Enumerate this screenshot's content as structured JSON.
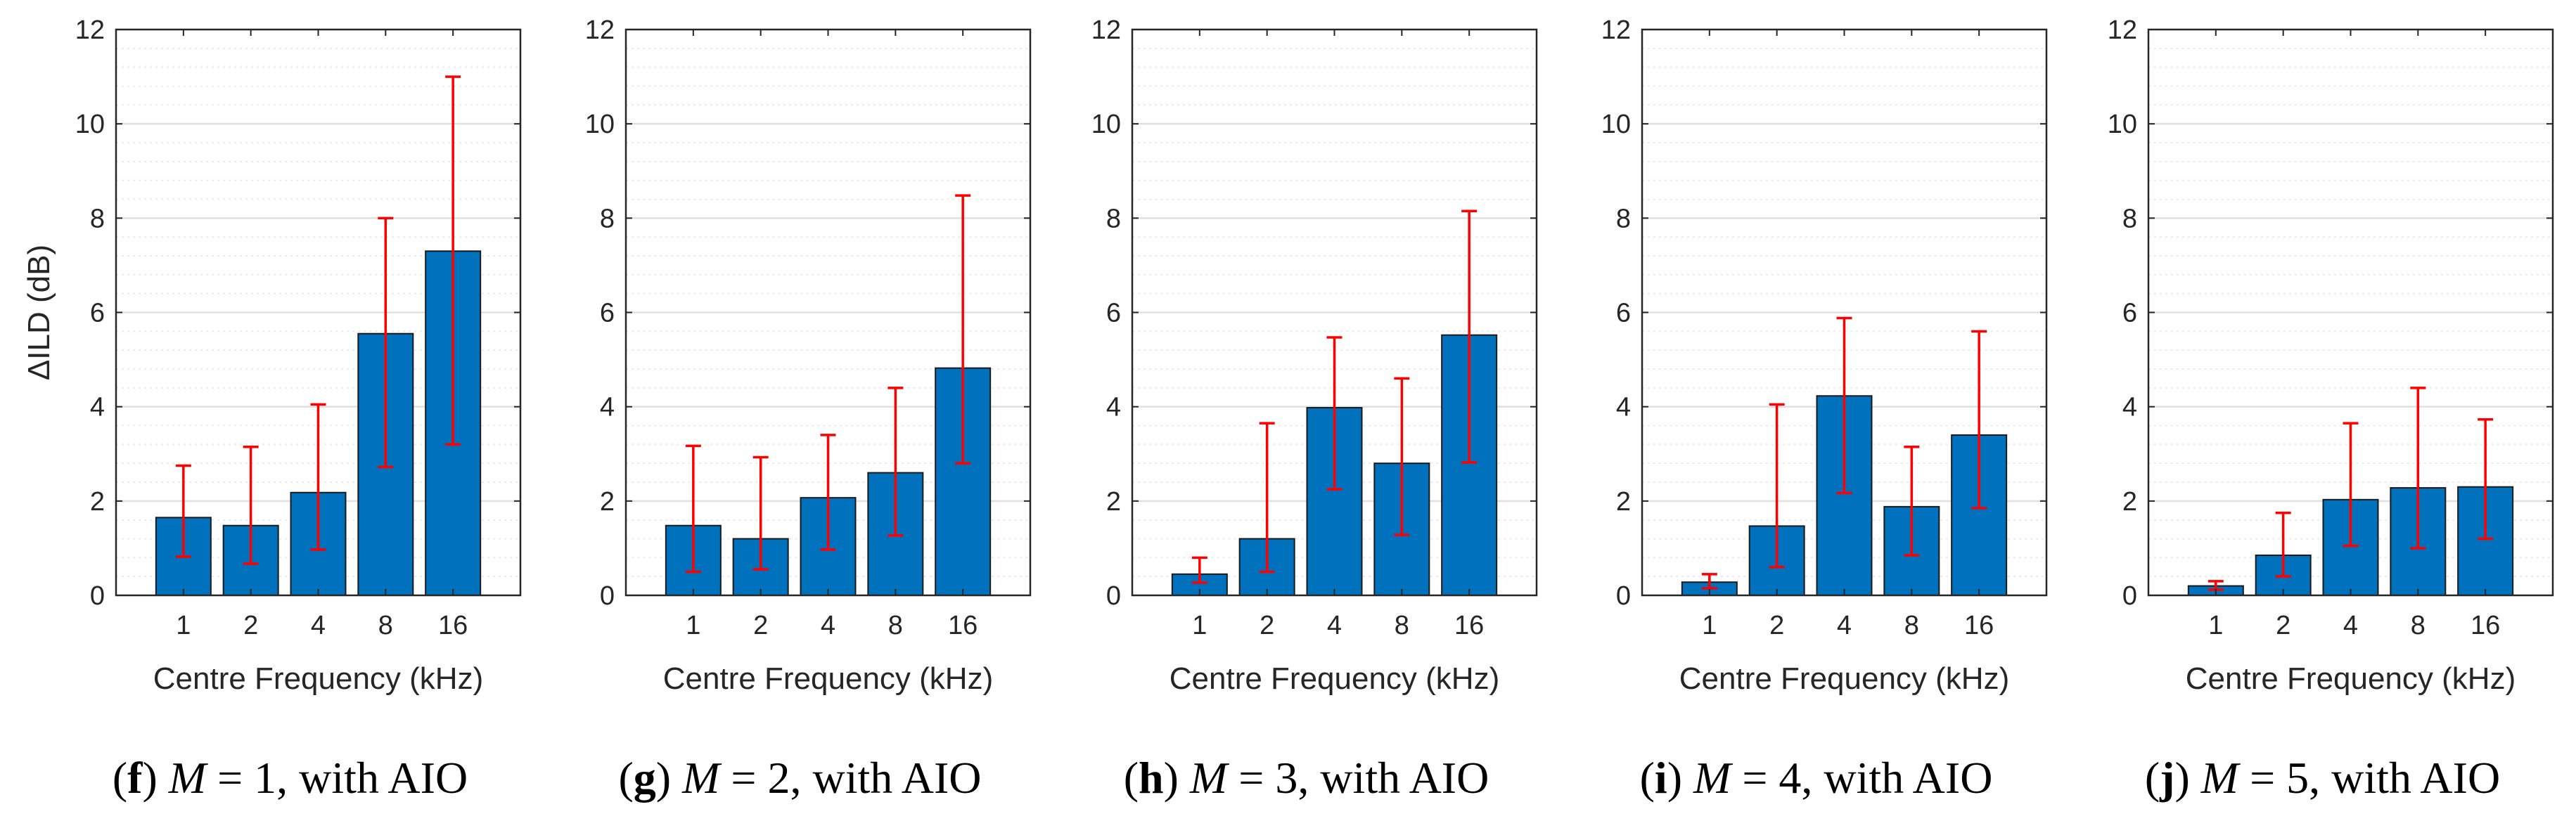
{
  "figure": {
    "colors": {
      "bar_fill": "#0072BD",
      "bar_edge": "#1a1a1a",
      "error_bar": "#FF0000",
      "grid_major": "#e0e0e0",
      "grid_minor": "#ebebeb",
      "axes": "#262626"
    }
  },
  "chart_data": [
    {
      "type": "bar",
      "caption": {
        "letter": "f",
        "m_value": "1",
        "suffix": ", with AIO"
      },
      "categories": [
        "1",
        "2",
        "4",
        "8",
        "16"
      ],
      "values": [
        1.65,
        1.48,
        2.18,
        5.55,
        7.3
      ],
      "error_low": [
        0.82,
        0.67,
        0.97,
        2.72,
        3.2
      ],
      "error_high": [
        2.75,
        3.15,
        4.05,
        8.0,
        11.0
      ],
      "xlabel": "Centre Frequency (kHz)",
      "ylabel": "ΔILD (dB)",
      "ylim": [
        0,
        12
      ],
      "yticks": [
        "0",
        "2",
        "4",
        "6",
        "8",
        "10",
        "12"
      ],
      "grid": "major and minor y"
    },
    {
      "type": "bar",
      "caption": {
        "letter": "g",
        "m_value": "2",
        "suffix": ", with AIO"
      },
      "categories": [
        "1",
        "2",
        "4",
        "8",
        "16"
      ],
      "values": [
        1.48,
        1.2,
        2.07,
        2.6,
        4.82
      ],
      "error_low": [
        0.5,
        0.55,
        0.97,
        1.27,
        2.8
      ],
      "error_high": [
        3.17,
        2.93,
        3.4,
        4.4,
        8.48
      ],
      "xlabel": "Centre Frequency (kHz)",
      "ylabel": "",
      "ylim": [
        0,
        12
      ],
      "yticks": [
        "0",
        "2",
        "4",
        "6",
        "8",
        "10",
        "12"
      ],
      "grid": "major and minor y"
    },
    {
      "type": "bar",
      "caption": {
        "letter": "h",
        "m_value": "3",
        "suffix": ", with AIO"
      },
      "categories": [
        "1",
        "2",
        "4",
        "8",
        "16"
      ],
      "values": [
        0.45,
        1.2,
        3.98,
        2.8,
        5.52
      ],
      "error_low": [
        0.27,
        0.5,
        2.25,
        1.28,
        2.82
      ],
      "error_high": [
        0.8,
        3.65,
        5.47,
        4.6,
        8.15
      ],
      "xlabel": "Centre Frequency (kHz)",
      "ylabel": "",
      "ylim": [
        0,
        12
      ],
      "yticks": [
        "0",
        "2",
        "4",
        "6",
        "8",
        "10",
        "12"
      ],
      "grid": "major and minor y"
    },
    {
      "type": "bar",
      "caption": {
        "letter": "i",
        "m_value": "4",
        "suffix": ", with AIO"
      },
      "categories": [
        "1",
        "2",
        "4",
        "8",
        "16"
      ],
      "values": [
        0.28,
        1.47,
        4.23,
        1.88,
        3.4
      ],
      "error_low": [
        0.15,
        0.6,
        2.17,
        0.85,
        1.85
      ],
      "error_high": [
        0.45,
        4.05,
        5.88,
        3.15,
        5.6
      ],
      "xlabel": "Centre Frequency (kHz)",
      "ylabel": "",
      "ylim": [
        0,
        12
      ],
      "yticks": [
        "0",
        "2",
        "4",
        "6",
        "8",
        "10",
        "12"
      ],
      "grid": "major and minor y"
    },
    {
      "type": "bar",
      "caption": {
        "letter": "j",
        "m_value": "5",
        "suffix": ", with AIO"
      },
      "categories": [
        "1",
        "2",
        "4",
        "8",
        "16"
      ],
      "values": [
        0.2,
        0.85,
        2.03,
        2.28,
        2.3
      ],
      "error_low": [
        0.12,
        0.4,
        1.05,
        1.0,
        1.2
      ],
      "error_high": [
        0.3,
        1.75,
        3.65,
        4.4,
        3.73
      ],
      "xlabel": "Centre Frequency (kHz)",
      "ylabel": "",
      "ylim": [
        0,
        12
      ],
      "yticks": [
        "0",
        "2",
        "4",
        "6",
        "8",
        "10",
        "12"
      ],
      "grid": "major and minor y"
    }
  ]
}
